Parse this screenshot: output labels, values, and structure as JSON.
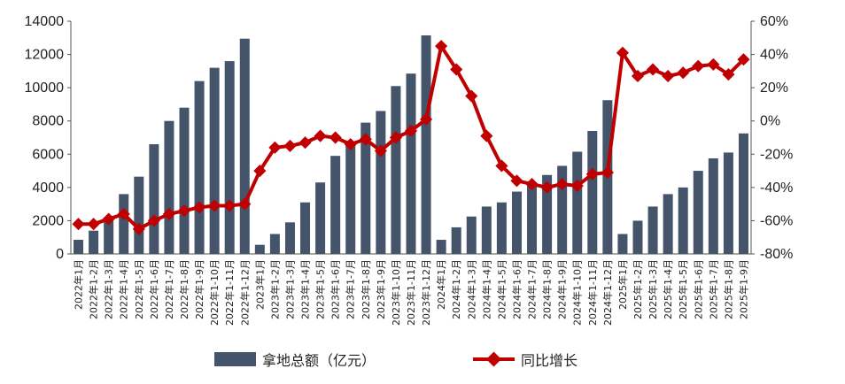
{
  "chart_data": {
    "type": "bar",
    "categories": [
      "2022年1月",
      "2022年1-2月",
      "2022年1-3月",
      "2022年1-4月",
      "2022年1-5月",
      "2022年1-6月",
      "2022年1-7月",
      "2022年1-8月",
      "2022年1-9月",
      "2022年1-10月",
      "2022年1-11月",
      "2022年1-12月",
      "2023年1月",
      "2023年1-2月",
      "2023年1-3月",
      "2023年1-4月",
      "2023年1-5月",
      "2023年1-6月",
      "2023年1-7月",
      "2023年1-8月",
      "2023年1-9月",
      "2023年1-10月",
      "2023年1-11月",
      "2023年1-12月",
      "2024年1月",
      "2024年1-2月",
      "2024年1-3月",
      "2024年1-4月",
      "2024年1-5月",
      "2024年1-6月",
      "2024年1-7月",
      "2024年1-8月",
      "2024年1-9月",
      "2024年1-10月",
      "2024年1-11月",
      "2024年1-12月",
      "2025年1月",
      "2025年1-2月",
      "2025年1-3月",
      "2025年1-4月",
      "2025年1-5月",
      "2025年1-6月",
      "2025年1-7月",
      "2025年1-8月",
      "2025年1-9月"
    ],
    "series": [
      {
        "name": "拿地总额（亿元）",
        "kind": "bar",
        "axis": "left",
        "color": "#44546a",
        "values": [
          850,
          1400,
          2000,
          3600,
          4650,
          6600,
          8000,
          8800,
          10400,
          11200,
          11600,
          12950,
          550,
          1200,
          1900,
          3100,
          4300,
          5900,
          6700,
          7900,
          8600,
          10100,
          10850,
          13150,
          850,
          1600,
          2250,
          2850,
          3100,
          3750,
          4300,
          4750,
          5300,
          6150,
          7400,
          9250,
          1200,
          2000,
          2850,
          3600,
          4000,
          5000,
          5750,
          6100,
          7250
        ]
      },
      {
        "name": "同比增长",
        "kind": "line",
        "axis": "right",
        "color": "#c00000",
        "values": [
          -62,
          -62,
          -59,
          -56,
          -65,
          -60,
          -56,
          -54,
          -52,
          -51,
          -51,
          -50,
          -30,
          -16,
          -15,
          -13,
          -9,
          -10,
          -14,
          -11,
          -18,
          -10,
          -6,
          1,
          45,
          31,
          15,
          -9,
          -27,
          -36,
          -38,
          -40,
          -38,
          -39,
          -32,
          -31,
          41,
          27,
          31,
          27,
          29,
          33,
          34,
          28,
          37
        ]
      }
    ],
    "yaxis_left": {
      "min": 0,
      "max": 14000,
      "ticks": [
        "0",
        "2000",
        "4000",
        "6000",
        "8000",
        "10000",
        "12000",
        "14000"
      ],
      "tick_values": [
        0,
        2000,
        4000,
        6000,
        8000,
        10000,
        12000,
        14000
      ]
    },
    "yaxis_right": {
      "min": -80,
      "max": 60,
      "ticks": [
        "-80%",
        "-60%",
        "-40%",
        "-20%",
        "0%",
        "20%",
        "40%",
        "60%"
      ],
      "tick_values": [
        -80,
        -60,
        -40,
        -20,
        0,
        20,
        40,
        60
      ]
    },
    "grid": false,
    "legend_position": "bottom"
  }
}
